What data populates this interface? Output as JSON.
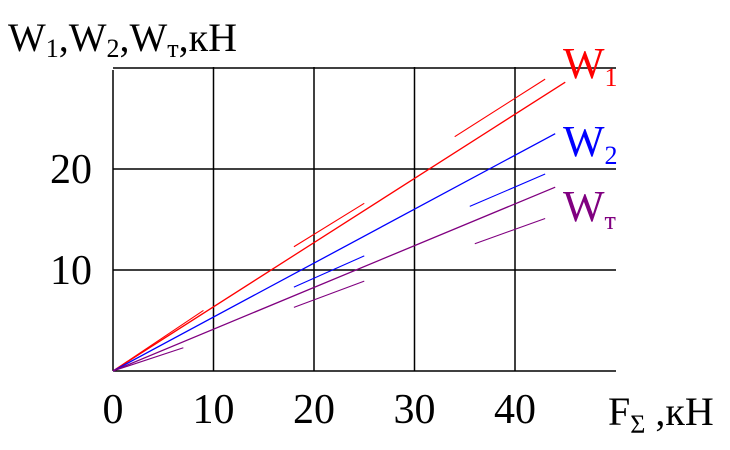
{
  "chart_data": {
    "type": "line",
    "ylabel": "W",
    "ylabel_parts": [
      "W",
      "1",
      ",W",
      "2",
      ",W",
      "т",
      ",кН"
    ],
    "xlabel_parts": [
      "F",
      "Σ",
      " ,кН"
    ],
    "xlim": [
      0,
      50
    ],
    "ylim": [
      0,
      30
    ],
    "x_ticks": [
      0,
      10,
      20,
      30,
      40
    ],
    "y_ticks": [
      10,
      20
    ],
    "grid": true,
    "series": [
      {
        "name": "W1",
        "label_main": "W",
        "label_sub": "1",
        "color": "#ff0000",
        "x": [
          0,
          45
        ],
        "y": [
          0,
          28.6
        ],
        "band_segments": [
          {
            "x": [
              0,
              9
            ],
            "y": [
              0,
              6.0
            ]
          },
          {
            "x": [
              18,
              25
            ],
            "y": [
              12.3,
              16.6
            ]
          },
          {
            "x": [
              34,
              43
            ],
            "y": [
              23.2,
              28.9
            ]
          }
        ]
      },
      {
        "name": "W2",
        "label_main": "W",
        "label_sub": "2",
        "color": "#0000ff",
        "x": [
          0,
          44
        ],
        "y": [
          0,
          23.5
        ],
        "band_segments": [
          {
            "x": [
              18,
              25
            ],
            "y": [
              8.3,
              11.4
            ]
          },
          {
            "x": [
              35.5,
              43
            ],
            "y": [
              16.3,
              19.5
            ]
          }
        ]
      },
      {
        "name": "WT",
        "label_main": "W",
        "label_sub": "т",
        "color": "#800080",
        "x": [
          0,
          44
        ],
        "y": [
          0,
          18.2
        ],
        "band_segments": [
          {
            "x": [
              0,
              7
            ],
            "y": [
              0,
              2.3
            ]
          },
          {
            "x": [
              18,
              25
            ],
            "y": [
              6.3,
              8.9
            ]
          },
          {
            "x": [
              36,
              43
            ],
            "y": [
              12.6,
              15.1
            ]
          }
        ]
      }
    ]
  }
}
